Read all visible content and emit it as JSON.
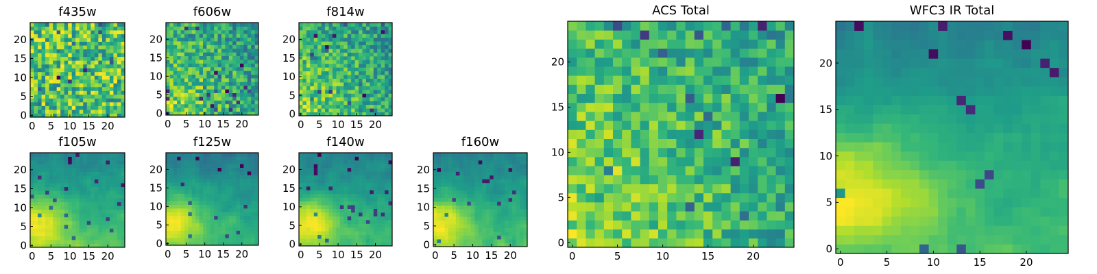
{
  "figure": {
    "panels": [
      {
        "id": "f435w",
        "title": "f435w",
        "x_ticks": [
          "0",
          "5",
          "10",
          "15",
          "20"
        ],
        "y_ticks": [
          "0",
          "5",
          "10",
          "15",
          "20"
        ]
      },
      {
        "id": "f606w",
        "title": "f606w",
        "x_ticks": [
          "0",
          "5",
          "10",
          "15",
          "20"
        ],
        "y_ticks": [
          "0",
          "5",
          "10",
          "15",
          "20"
        ]
      },
      {
        "id": "f814w",
        "title": "f814w",
        "x_ticks": [
          "0",
          "5",
          "10",
          "15",
          "20"
        ],
        "y_ticks": [
          "0",
          "5",
          "10",
          "15",
          "20"
        ]
      },
      {
        "id": "f105w",
        "title": "f105w",
        "x_ticks": [
          "0",
          "5",
          "10",
          "15",
          "20"
        ],
        "y_ticks": [
          "0",
          "5",
          "10",
          "15",
          "20"
        ]
      },
      {
        "id": "f125w",
        "title": "f125w",
        "x_ticks": [
          "0",
          "5",
          "10",
          "15",
          "20"
        ],
        "y_ticks": [
          "0",
          "5",
          "10",
          "15",
          "20"
        ]
      },
      {
        "id": "f140w",
        "title": "f140w",
        "x_ticks": [
          "0",
          "5",
          "10",
          "15",
          "20"
        ],
        "y_ticks": [
          "0",
          "5",
          "10",
          "15",
          "20"
        ]
      },
      {
        "id": "f160w",
        "title": "f160w",
        "x_ticks": [
          "0",
          "5",
          "10",
          "15",
          "20"
        ],
        "y_ticks": [
          "0",
          "5",
          "10",
          "15",
          "20"
        ]
      },
      {
        "id": "acs-total",
        "title": "ACS Total",
        "x_ticks": [
          "0",
          "5",
          "10",
          "15",
          "20"
        ],
        "y_ticks": [
          "0",
          "5",
          "10",
          "15",
          "20"
        ]
      },
      {
        "id": "wfc3-ir-total",
        "title": "WFC3 IR Total",
        "x_ticks": [
          "0",
          "5",
          "10",
          "15",
          "20"
        ],
        "y_ticks": [
          "0",
          "5",
          "10",
          "15",
          "20"
        ]
      }
    ]
  },
  "chart_data": [
    {
      "type": "heatmap",
      "title": "f435w",
      "grid_size": [
        25,
        25
      ],
      "x_range": [
        0,
        24
      ],
      "y_range": [
        0,
        24
      ],
      "colormap": "viridis",
      "pattern": "noise",
      "seed": 11
    },
    {
      "type": "heatmap",
      "title": "f606w",
      "grid_size": [
        25,
        25
      ],
      "x_range": [
        0,
        24
      ],
      "y_range": [
        0,
        24
      ],
      "colormap": "viridis",
      "pattern": "noisy-bottom-left-bright",
      "seed": 23
    },
    {
      "type": "heatmap",
      "title": "f814w",
      "grid_size": [
        25,
        25
      ],
      "x_range": [
        0,
        24
      ],
      "y_range": [
        0,
        24
      ],
      "colormap": "viridis",
      "pattern": "noisy-bottom-left-bright",
      "seed": 37
    },
    {
      "type": "heatmap",
      "title": "f105w",
      "grid_size": [
        25,
        25
      ],
      "x_range": [
        0,
        24
      ],
      "y_range": [
        0,
        24
      ],
      "colormap": "viridis",
      "pattern": "smooth-bottom-left-bright-top-dark",
      "seed": 41
    },
    {
      "type": "heatmap",
      "title": "f125w",
      "grid_size": [
        25,
        25
      ],
      "x_range": [
        0,
        24
      ],
      "y_range": [
        0,
        24
      ],
      "colormap": "viridis",
      "pattern": "smooth-bottom-left-bright-top-dark",
      "seed": 53
    },
    {
      "type": "heatmap",
      "title": "f140w",
      "grid_size": [
        25,
        25
      ],
      "x_range": [
        0,
        24
      ],
      "y_range": [
        0,
        24
      ],
      "colormap": "viridis",
      "pattern": "smooth-bottom-left-bright-top-dark",
      "seed": 67
    },
    {
      "type": "heatmap",
      "title": "f160w",
      "grid_size": [
        25,
        25
      ],
      "x_range": [
        0,
        24
      ],
      "y_range": [
        0,
        24
      ],
      "colormap": "viridis",
      "pattern": "smooth-bottom-left-bright-top-dark",
      "seed": 79
    },
    {
      "type": "heatmap",
      "title": "ACS Total",
      "grid_size": [
        25,
        25
      ],
      "x_range": [
        0,
        24
      ],
      "y_range": [
        0,
        24
      ],
      "colormap": "viridis",
      "pattern": "noisy-bottom-left-bright",
      "seed": 83
    },
    {
      "type": "heatmap",
      "title": "WFC3 IR Total",
      "grid_size": [
        25,
        25
      ],
      "x_range": [
        0,
        24
      ],
      "y_range": [
        0,
        24
      ],
      "colormap": "viridis",
      "pattern": "smooth-bottom-left-bright-top-dark",
      "seed": 97
    }
  ]
}
